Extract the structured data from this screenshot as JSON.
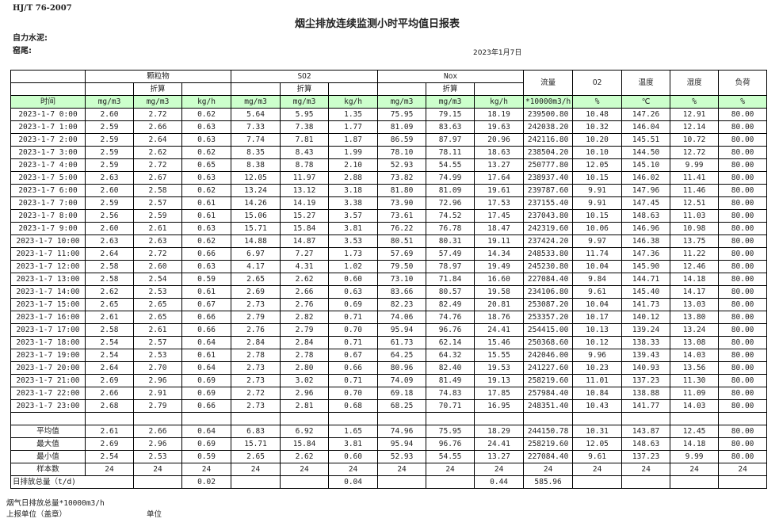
{
  "standard": "HJ/T  76-2007",
  "title": "烟尘排放连续监测小时平均值日报表",
  "company_label": "自力水泥:",
  "kiln_label": "窑尾:",
  "date": "2023年1月7日",
  "header": {
    "groups": [
      "颗粒物",
      "SO2",
      "Nox"
    ],
    "converted": "折算",
    "single": [
      "流量",
      "O2",
      "温度",
      "湿度",
      "负荷"
    ],
    "units": [
      "时间",
      "mg/m3",
      "mg/m3",
      "kg/h",
      "mg/m3",
      "mg/m3",
      "kg/h",
      "mg/m3",
      "mg/m3",
      "kg/h",
      "*10000m3/h",
      "%",
      "℃",
      "%",
      "%"
    ]
  },
  "rows": [
    [
      "2023-1-7 0:00",
      "2.60",
      "2.72",
      "0.62",
      "5.64",
      "5.95",
      "1.35",
      "75.95",
      "79.15",
      "18.19",
      "239500.80",
      "10.48",
      "147.26",
      "12.91",
      "80.00"
    ],
    [
      "2023-1-7 1:00",
      "2.59",
      "2.66",
      "0.63",
      "7.33",
      "7.38",
      "1.77",
      "81.09",
      "83.63",
      "19.63",
      "242038.20",
      "10.32",
      "146.04",
      "12.14",
      "80.00"
    ],
    [
      "2023-1-7 2:00",
      "2.59",
      "2.64",
      "0.63",
      "7.74",
      "7.81",
      "1.87",
      "86.59",
      "87.97",
      "20.96",
      "242116.80",
      "10.20",
      "145.51",
      "10.72",
      "80.00"
    ],
    [
      "2023-1-7 3:00",
      "2.59",
      "2.62",
      "0.62",
      "8.35",
      "8.43",
      "1.99",
      "78.10",
      "78.11",
      "18.63",
      "238504.20",
      "10.10",
      "144.50",
      "12.72",
      "80.00"
    ],
    [
      "2023-1-7 4:00",
      "2.59",
      "2.72",
      "0.65",
      "8.38",
      "8.78",
      "2.10",
      "52.93",
      "54.55",
      "13.27",
      "250777.80",
      "12.05",
      "145.10",
      "9.99",
      "80.00"
    ],
    [
      "2023-1-7 5:00",
      "2.63",
      "2.67",
      "0.63",
      "12.05",
      "11.97",
      "2.88",
      "73.82",
      "74.99",
      "17.64",
      "238937.40",
      "10.15",
      "146.02",
      "11.41",
      "80.00"
    ],
    [
      "2023-1-7 6:00",
      "2.60",
      "2.58",
      "0.62",
      "13.24",
      "13.12",
      "3.18",
      "81.80",
      "81.09",
      "19.61",
      "239787.60",
      "9.91",
      "147.96",
      "11.46",
      "80.00"
    ],
    [
      "2023-1-7 7:00",
      "2.59",
      "2.57",
      "0.61",
      "14.26",
      "14.19",
      "3.38",
      "73.90",
      "72.96",
      "17.53",
      "237155.40",
      "9.91",
      "147.45",
      "12.51",
      "80.00"
    ],
    [
      "2023-1-7 8:00",
      "2.56",
      "2.59",
      "0.61",
      "15.06",
      "15.27",
      "3.57",
      "73.61",
      "74.52",
      "17.45",
      "237043.80",
      "10.15",
      "148.63",
      "11.03",
      "80.00"
    ],
    [
      "2023-1-7 9:00",
      "2.60",
      "2.61",
      "0.63",
      "15.71",
      "15.84",
      "3.81",
      "76.22",
      "76.78",
      "18.47",
      "242319.60",
      "10.06",
      "146.96",
      "10.98",
      "80.00"
    ],
    [
      "2023-1-7 10:00",
      "2.63",
      "2.63",
      "0.62",
      "14.88",
      "14.87",
      "3.53",
      "80.51",
      "80.31",
      "19.11",
      "237424.20",
      "9.97",
      "146.38",
      "13.75",
      "80.00"
    ],
    [
      "2023-1-7 11:00",
      "2.64",
      "2.72",
      "0.66",
      "6.97",
      "7.27",
      "1.73",
      "57.69",
      "57.49",
      "14.34",
      "248533.80",
      "11.74",
      "147.36",
      "11.22",
      "80.00"
    ],
    [
      "2023-1-7 12:00",
      "2.58",
      "2.60",
      "0.63",
      "4.17",
      "4.31",
      "1.02",
      "79.50",
      "78.97",
      "19.49",
      "245230.80",
      "10.04",
      "145.90",
      "12.46",
      "80.00"
    ],
    [
      "2023-1-7 13:00",
      "2.58",
      "2.54",
      "0.59",
      "2.65",
      "2.62",
      "0.60",
      "73.10",
      "71.84",
      "16.60",
      "227084.40",
      "9.84",
      "144.71",
      "14.18",
      "80.00"
    ],
    [
      "2023-1-7 14:00",
      "2.62",
      "2.53",
      "0.61",
      "2.69",
      "2.66",
      "0.63",
      "83.66",
      "80.57",
      "19.58",
      "234106.80",
      "9.61",
      "145.40",
      "14.17",
      "80.00"
    ],
    [
      "2023-1-7 15:00",
      "2.65",
      "2.65",
      "0.67",
      "2.73",
      "2.76",
      "0.69",
      "82.23",
      "82.49",
      "20.81",
      "253087.20",
      "10.04",
      "141.73",
      "13.03",
      "80.00"
    ],
    [
      "2023-1-7 16:00",
      "2.61",
      "2.65",
      "0.66",
      "2.79",
      "2.82",
      "0.71",
      "74.06",
      "74.76",
      "18.76",
      "253357.20",
      "10.17",
      "140.12",
      "13.80",
      "80.00"
    ],
    [
      "2023-1-7 17:00",
      "2.58",
      "2.61",
      "0.66",
      "2.76",
      "2.79",
      "0.70",
      "95.94",
      "96.76",
      "24.41",
      "254415.00",
      "10.13",
      "139.24",
      "13.24",
      "80.00"
    ],
    [
      "2023-1-7 18:00",
      "2.54",
      "2.57",
      "0.64",
      "2.84",
      "2.84",
      "0.71",
      "61.73",
      "62.14",
      "15.46",
      "250368.60",
      "10.12",
      "138.33",
      "13.08",
      "80.00"
    ],
    [
      "2023-1-7 19:00",
      "2.54",
      "2.53",
      "0.61",
      "2.78",
      "2.78",
      "0.67",
      "64.25",
      "64.32",
      "15.55",
      "242046.00",
      "9.96",
      "139.43",
      "14.03",
      "80.00"
    ],
    [
      "2023-1-7 20:00",
      "2.64",
      "2.70",
      "0.64",
      "2.73",
      "2.80",
      "0.66",
      "80.96",
      "82.40",
      "19.53",
      "241227.60",
      "10.23",
      "140.93",
      "13.56",
      "80.00"
    ],
    [
      "2023-1-7 21:00",
      "2.69",
      "2.96",
      "0.69",
      "2.73",
      "3.02",
      "0.71",
      "74.09",
      "81.49",
      "19.13",
      "258219.60",
      "11.01",
      "137.23",
      "11.30",
      "80.00"
    ],
    [
      "2023-1-7 22:00",
      "2.66",
      "2.91",
      "0.69",
      "2.72",
      "2.96",
      "0.70",
      "69.18",
      "74.83",
      "17.85",
      "257984.40",
      "10.84",
      "138.88",
      "11.09",
      "80.00"
    ],
    [
      "2023-1-7 23:00",
      "2.68",
      "2.79",
      "0.66",
      "2.73",
      "2.81",
      "0.68",
      "68.25",
      "70.71",
      "16.95",
      "248351.40",
      "10.43",
      "141.77",
      "14.03",
      "80.00"
    ]
  ],
  "stats": [
    [
      "平均值",
      "2.61",
      "2.66",
      "0.64",
      "6.83",
      "6.92",
      "1.65",
      "74.96",
      "75.95",
      "18.29",
      "244150.78",
      "10.31",
      "143.87",
      "12.45",
      "80.00"
    ],
    [
      "最大值",
      "2.69",
      "2.96",
      "0.69",
      "15.71",
      "15.84",
      "3.81",
      "95.94",
      "96.76",
      "24.41",
      "258219.60",
      "12.05",
      "148.63",
      "14.18",
      "80.00"
    ],
    [
      "最小值",
      "2.54",
      "2.53",
      "0.59",
      "2.65",
      "2.62",
      "0.60",
      "52.93",
      "54.55",
      "13.27",
      "227084.40",
      "9.61",
      "137.23",
      "9.99",
      "80.00"
    ],
    [
      "样本数",
      "24",
      "24",
      "24",
      "24",
      "24",
      "24",
      "24",
      "24",
      "24",
      "24",
      "24",
      "24",
      "24",
      "24"
    ]
  ],
  "daily_total": {
    "label": "日排放总量（t/d)",
    "values": [
      "",
      "0.02",
      "",
      "",
      "0.04",
      "",
      "",
      "0.44",
      "585.96",
      "",
      "",
      "",
      ""
    ]
  },
  "footer": {
    "flue_gas_total": "烟气日排放总量*10000m3/h",
    "report_unit": "上报单位（盖章）",
    "unit": "单位"
  },
  "colors": {
    "unit_row_bg": "#ccffcc"
  }
}
